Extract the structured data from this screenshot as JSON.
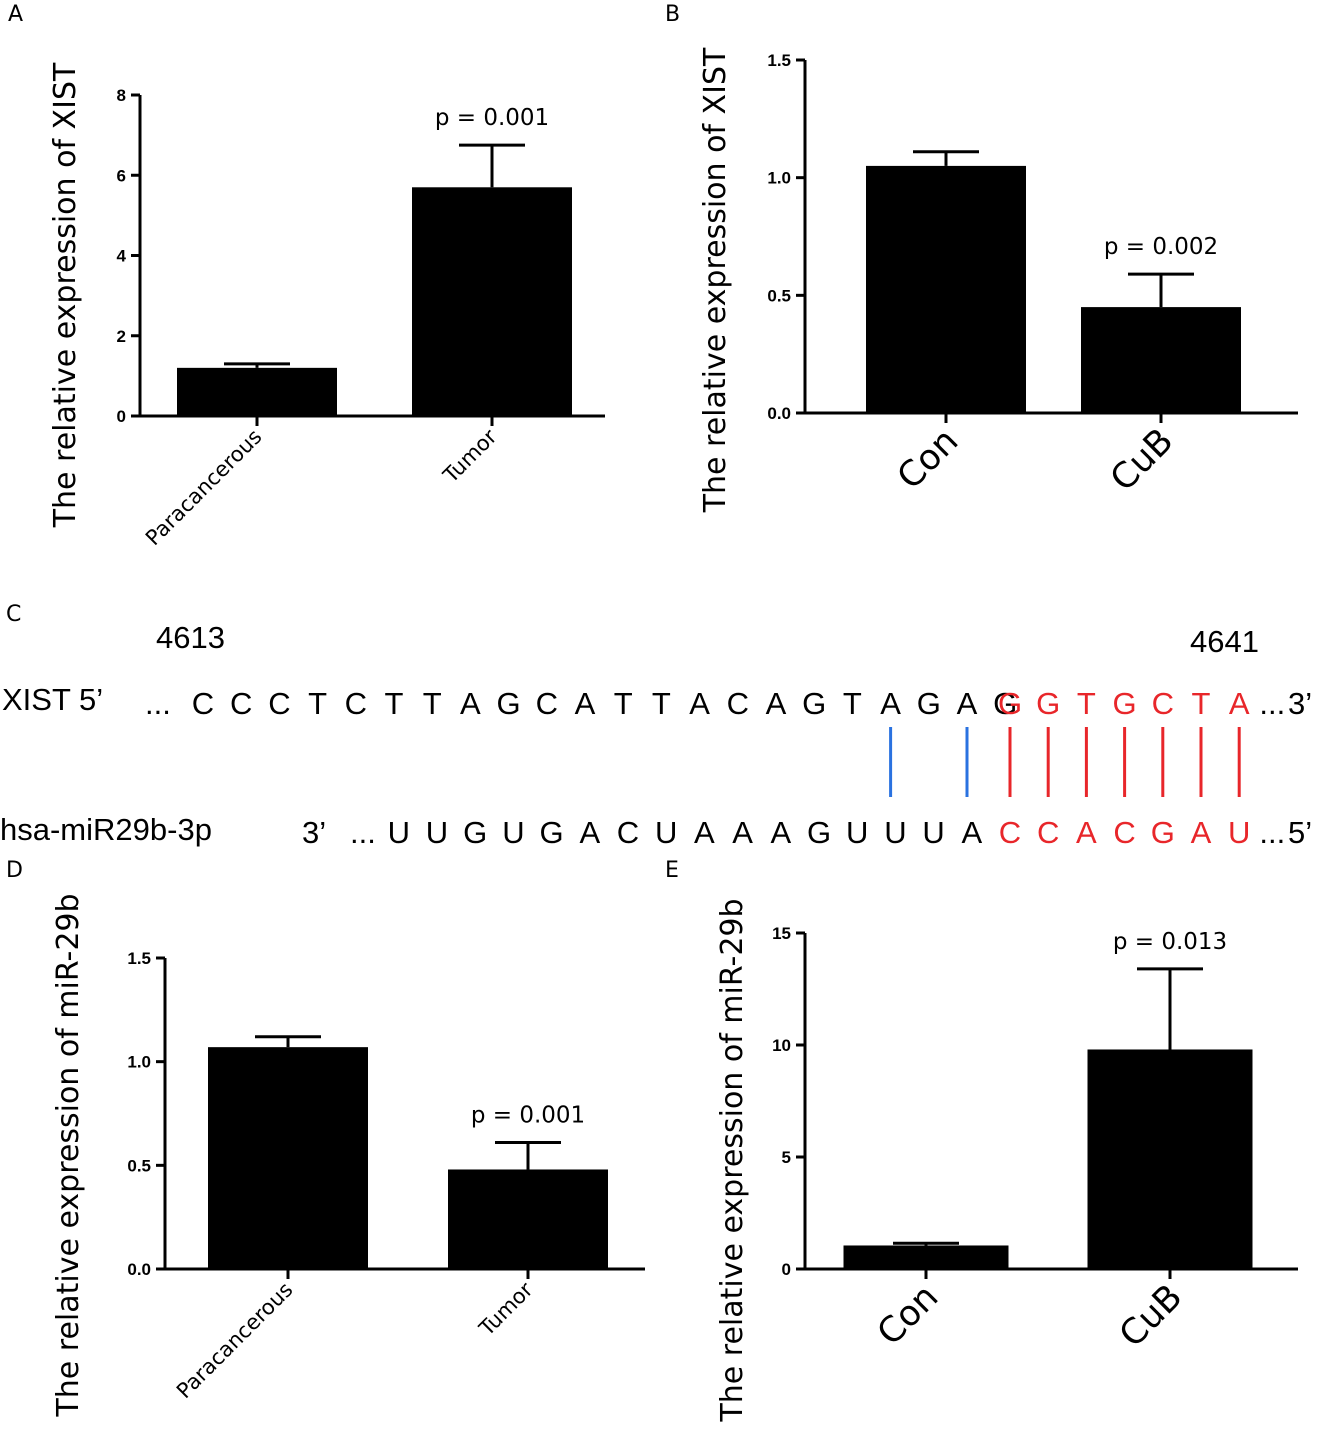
{
  "colors": {
    "bar": "#000000",
    "match_red": "#e8262a",
    "match_blue": "#2a72e0",
    "text": "#000000"
  },
  "panels": {
    "A": "A",
    "B": "B",
    "C": "C",
    "D": "D",
    "E": "E"
  },
  "sequence_panel": {
    "position_start": "4613",
    "position_end": "4641",
    "top": {
      "label": "XIST 5’",
      "prefix": "...",
      "bases_black": [
        "C",
        "C",
        "C",
        "T",
        "C",
        "T",
        "T",
        "A",
        "G",
        "C",
        "A",
        "T",
        "T",
        "A",
        "C",
        "A",
        "G",
        "T",
        "A",
        "G",
        "A",
        "G"
      ],
      "bases_red": [
        "G",
        "G",
        "T",
        "G",
        "C",
        "T",
        "A"
      ],
      "suffix": "... 3’"
    },
    "bottom": {
      "label": "hsa-miR29b-3p",
      "end5": "3’",
      "prefix": "...",
      "bases_black": [
        "U",
        "U",
        "G",
        "U",
        "G",
        "A",
        "C",
        "U",
        "A",
        "A",
        "A",
        "G",
        "U",
        "U",
        "U",
        "A"
      ],
      "bases_red": [
        "C",
        "C",
        "A",
        "C",
        "G",
        "A",
        "U"
      ],
      "suffix": "... 5’"
    },
    "pairing": {
      "blue_top_indices": [
        18,
        20
      ],
      "red_count": 7
    }
  },
  "chart_data": [
    {
      "panel": "A",
      "type": "bar",
      "ylabel": "The relative expression of XIST",
      "categories": [
        "Paracancerous",
        "Tumor"
      ],
      "values": [
        1.2,
        5.7
      ],
      "errors": [
        0.1,
        1.05
      ],
      "ylim": [
        0,
        8
      ],
      "yticks": [
        "0",
        "2",
        "4",
        "6",
        "8"
      ],
      "ytick_values": [
        0,
        2,
        4,
        6,
        8
      ],
      "xlabel_rotation": -45,
      "annotations": [
        {
          "category": "Tumor",
          "text": "p = 0.001"
        }
      ]
    },
    {
      "panel": "B",
      "type": "bar",
      "ylabel": "The relative expression of XIST",
      "categories": [
        "Con",
        "CuB"
      ],
      "values": [
        1.05,
        0.45
      ],
      "errors": [
        0.06,
        0.14
      ],
      "ylim": [
        0,
        1.5
      ],
      "yticks": [
        "0.0",
        "0.5",
        "1.0",
        "1.5"
      ],
      "ytick_values": [
        0,
        0.5,
        1.0,
        1.5
      ],
      "xlabel_rotation": -45,
      "annotations": [
        {
          "category": "CuB",
          "text": "p = 0.002"
        }
      ]
    },
    {
      "panel": "D",
      "type": "bar",
      "ylabel": "The relative expression of miR-29b",
      "categories": [
        "Paracancerous",
        "Tumor"
      ],
      "values": [
        1.07,
        0.48
      ],
      "errors": [
        0.05,
        0.13
      ],
      "ylim": [
        0,
        1.5
      ],
      "yticks": [
        "0.0",
        "0.5",
        "1.0",
        "1.5"
      ],
      "ytick_values": [
        0,
        0.5,
        1.0,
        1.5
      ],
      "xlabel_rotation": -45,
      "annotations": [
        {
          "category": "Tumor",
          "text": "p = 0.001"
        }
      ]
    },
    {
      "panel": "E",
      "type": "bar",
      "ylabel": "The relative expression of miR-29b",
      "categories": [
        "Con",
        "CuB"
      ],
      "values": [
        1.05,
        9.8
      ],
      "errors": [
        0.1,
        3.6
      ],
      "ylim": [
        0,
        15
      ],
      "yticks": [
        "0",
        "5",
        "10",
        "15"
      ],
      "ytick_values": [
        0,
        5,
        10,
        15
      ],
      "xlabel_rotation": -45,
      "annotations": [
        {
          "category": "CuB",
          "text": "p = 0.013"
        }
      ]
    }
  ]
}
